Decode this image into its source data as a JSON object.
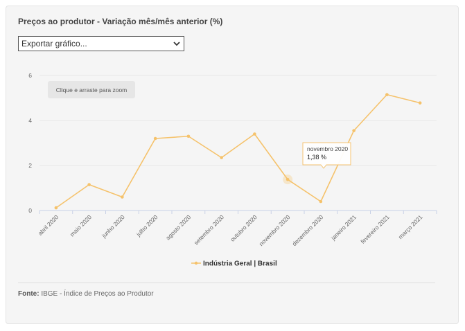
{
  "title": "Preços ao produtor - Variação mês/mês anterior (%)",
  "export_select": {
    "value": "Exportar gráfico..."
  },
  "zoom_hint": "Clique e arraste para zoom",
  "tooltip": {
    "label": "novembro 2020",
    "value": "1,38 %"
  },
  "footer": {
    "label": "Fonte:",
    "text": " IBGE - Índice de Preços ao Produtor"
  },
  "colors": {
    "series": "#f5c26b",
    "grid": "#e8e8e8",
    "axis": "#c8d1e6"
  },
  "chart_data": {
    "type": "line",
    "categories": [
      "abril 2020",
      "maio 2020",
      "junho 2020",
      "julho 2020",
      "agosto 2020",
      "setembro 2020",
      "outubro 2020",
      "novembro 2020",
      "dezembro 2020",
      "janeiro 2021",
      "fevereiro 2021",
      "março 2021"
    ],
    "series": [
      {
        "name": "Indústria Geral | Brasil",
        "values": [
          0.12,
          1.15,
          0.6,
          3.2,
          3.3,
          2.35,
          3.4,
          1.38,
          0.4,
          3.55,
          5.15,
          4.78
        ]
      }
    ],
    "ylim": [
      0,
      6
    ],
    "yticks": [
      0,
      2,
      4,
      6
    ],
    "grid": true,
    "legend": "bottom-center",
    "highlighted_category": "novembro 2020"
  }
}
